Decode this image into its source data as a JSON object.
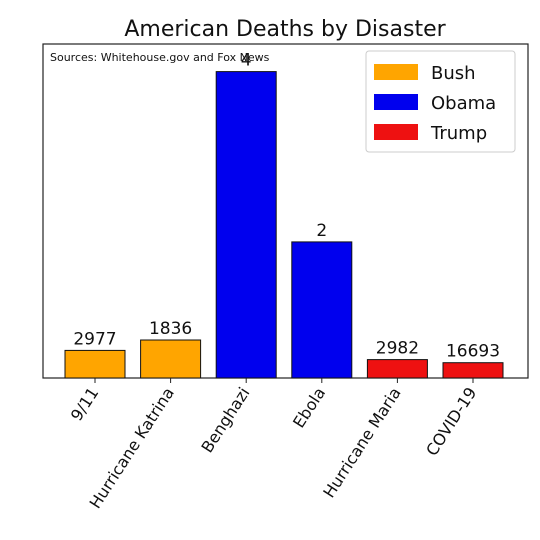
{
  "chart_data": {
    "type": "bar",
    "title": "American Deaths by Disaster",
    "annotation": "Sources: Whitehouse.gov and Fox News",
    "xlabel": "",
    "ylabel": "",
    "categories": [
      "9/11",
      "Hurricane Katrina",
      "Benghazi",
      "Ebola",
      "Hurricane Maria",
      "COVID-19"
    ],
    "values": [
      2977,
      1836,
      4,
      2,
      2982,
      16693
    ],
    "plotted_heights": [
      0.45,
      0.62,
      5,
      2.22,
      0.3,
      0.25
    ],
    "value_labels": [
      "2977",
      "1836",
      "4",
      "2",
      "2982",
      "16693"
    ],
    "bar_series": [
      "Bush",
      "Bush",
      "Obama",
      "Obama",
      "Trump",
      "Trump"
    ],
    "series": [
      {
        "name": "Bush",
        "color": "#FFA500"
      },
      {
        "name": "Obama",
        "color": "#0000EE"
      },
      {
        "name": "Trump",
        "color": "#EE1111"
      }
    ],
    "ylim": [
      0,
      5.45
    ],
    "grid": false,
    "yticks_visible": false,
    "legend_position": "top-right"
  }
}
